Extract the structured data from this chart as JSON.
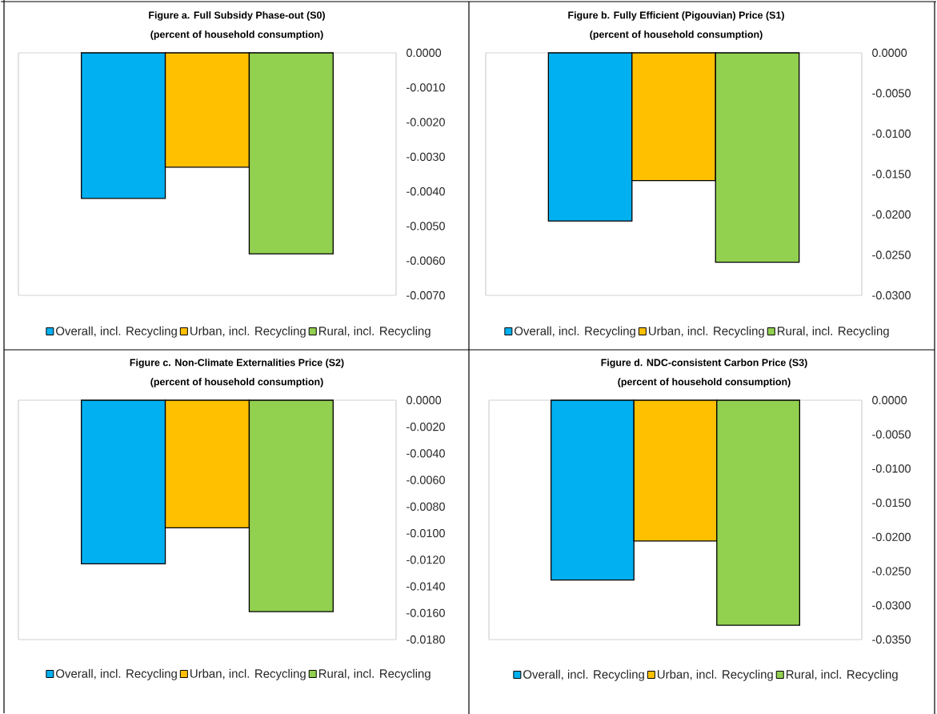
{
  "chart_data": [
    {
      "type": "bar",
      "title": "Figure a. Full Subsidy Phase-out (S0)",
      "subtitle": "(percent of household consumption)",
      "categories": [
        null
      ],
      "legend": "bottom",
      "series": [
        {
          "name": "Overall, incl. Recycling",
          "color": "#00b0f0",
          "values": [
            -0.0042
          ]
        },
        {
          "name": "Urban, incl. Recycling",
          "color": "#ffc000",
          "values": [
            -0.0033
          ]
        },
        {
          "name": "Rural, incl. Recycling",
          "color": "#92d050",
          "values": [
            -0.0058
          ]
        }
      ],
      "ylim": [
        -0.007,
        0
      ],
      "yticks": [
        {
          "value": 0,
          "label": "0.0000"
        },
        {
          "value": -0.001,
          "label": "-0.0010"
        },
        {
          "value": -0.002,
          "label": "-0.0020"
        },
        {
          "value": -0.003,
          "label": "-0.0030"
        },
        {
          "value": -0.004,
          "label": "-0.0040"
        },
        {
          "value": -0.005,
          "label": "-0.0050"
        },
        {
          "value": -0.006,
          "label": "-0.0060"
        },
        {
          "value": -0.007,
          "label": "-0.0070"
        }
      ],
      "tick_labels": "y"
    },
    {
      "type": "bar",
      "title": "Figure b. Fully Efficient (Pigouvian) Price (S1)",
      "subtitle": "(percent of household consumption)",
      "categories": [
        null
      ],
      "legend": "bottom",
      "series": [
        {
          "name": "Overall, incl. Recycling",
          "color": "#00b0f0",
          "values": [
            -0.0208
          ]
        },
        {
          "name": "Urban, incl. Recycling",
          "color": "#ffc000",
          "values": [
            -0.0158
          ]
        },
        {
          "name": "Rural, incl. Recycling",
          "color": "#92d050",
          "values": [
            -0.0259
          ]
        }
      ],
      "ylim": [
        -0.03,
        0
      ],
      "yticks": [
        {
          "value": 0,
          "label": "0.0000"
        },
        {
          "value": -0.005,
          "label": "-0.0050"
        },
        {
          "value": -0.01,
          "label": "-0.0100"
        },
        {
          "value": -0.015,
          "label": "-0.0150"
        },
        {
          "value": -0.02,
          "label": "-0.0200"
        },
        {
          "value": -0.025,
          "label": "-0.0250"
        },
        {
          "value": -0.03,
          "label": "-0.0300"
        }
      ],
      "tick_labels": "y"
    },
    {
      "type": "bar",
      "title": "Figure c. Non-Climate Externalities Price (S2)",
      "subtitle": "(percent of household consumption)",
      "categories": [
        null
      ],
      "legend": "bottom",
      "series": [
        {
          "name": "Overall, incl. Recycling",
          "color": "#00b0f0",
          "values": [
            -0.0123
          ]
        },
        {
          "name": "Urban, incl. Recycling",
          "color": "#ffc000",
          "values": [
            -0.0096
          ]
        },
        {
          "name": "Rural, incl. Recycling",
          "color": "#92d050",
          "values": [
            -0.0159
          ]
        }
      ],
      "ylim": [
        -0.018,
        0
      ],
      "yticks": [
        {
          "value": 0,
          "label": "0.0000"
        },
        {
          "value": -0.002,
          "label": "-0.0020"
        },
        {
          "value": -0.004,
          "label": "-0.0040"
        },
        {
          "value": -0.006,
          "label": "-0.0060"
        },
        {
          "value": -0.008,
          "label": "-0.0080"
        },
        {
          "value": -0.01,
          "label": "-0.0100"
        },
        {
          "value": -0.012,
          "label": "-0.0120"
        },
        {
          "value": -0.014,
          "label": "-0.0140"
        },
        {
          "value": -0.016,
          "label": "-0.0160"
        },
        {
          "value": -0.018,
          "label": "-0.0180"
        }
      ],
      "tick_labels": "y"
    },
    {
      "type": "bar",
      "title": "Figure d. NDC-consistent Carbon Price (S3)",
      "subtitle": "(percent of household consumption)",
      "categories": [
        null
      ],
      "legend": "bottom",
      "series": [
        {
          "name": "Overall, incl. Recycling",
          "color": "#00b0f0",
          "values": [
            -0.0263
          ]
        },
        {
          "name": "Urban, incl. Recycling",
          "color": "#ffc000",
          "values": [
            -0.0206
          ]
        },
        {
          "name": "Rural, incl. Recycling",
          "color": "#92d050",
          "values": [
            -0.0329
          ]
        }
      ],
      "ylim": [
        -0.035,
        0
      ],
      "yticks": [
        {
          "value": 0,
          "label": "0.0000"
        },
        {
          "value": -0.005,
          "label": "-0.0050"
        },
        {
          "value": -0.01,
          "label": "-0.0100"
        },
        {
          "value": -0.015,
          "label": "-0.0150"
        },
        {
          "value": -0.02,
          "label": "-0.0200"
        },
        {
          "value": -0.025,
          "label": "-0.0250"
        },
        {
          "value": -0.03,
          "label": "-0.0300"
        },
        {
          "value": -0.035,
          "label": "-0.0350"
        }
      ],
      "tick_labels": "y"
    }
  ]
}
